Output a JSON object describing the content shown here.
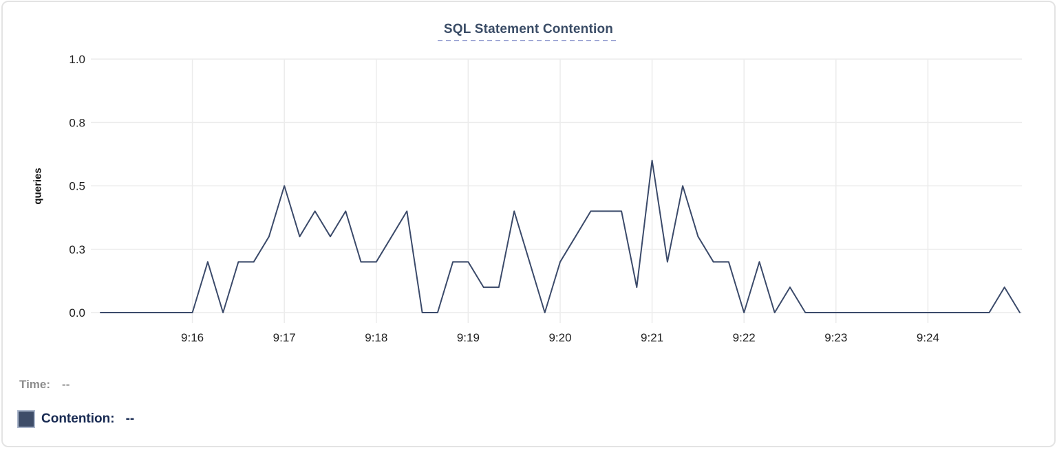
{
  "chart": {
    "title": "SQL Statement Contention",
    "y_axis_title": "queries",
    "colors": {
      "line": "#3b4a6a",
      "grid": "#ececec",
      "tick_text": "#1f1f1f",
      "title_text": "#3a4c66",
      "title_underline": "#a2aad6"
    }
  },
  "legend": {
    "time_label": "Time:",
    "time_value": "--",
    "contention_label": "Contention:",
    "contention_value": "--",
    "swatch_color": "#3e4d69"
  },
  "chart_data": {
    "type": "line",
    "title": "SQL Statement Contention",
    "xlabel": "",
    "ylabel": "queries",
    "ylim": [
      0,
      1
    ],
    "grid": true,
    "legend_position": "bottom-left",
    "y_ticks": [
      {
        "label": "0.0",
        "value": 0
      },
      {
        "label": "0.3",
        "value": 0.25
      },
      {
        "label": "0.5",
        "value": 0.5
      },
      {
        "label": "0.8",
        "value": 0.75
      },
      {
        "label": "1.0",
        "value": 1
      }
    ],
    "x_ticks": [
      {
        "label": "9:16",
        "minute": 1
      },
      {
        "label": "9:17",
        "minute": 2
      },
      {
        "label": "9:18",
        "minute": 3
      },
      {
        "label": "9:19",
        "minute": 4
      },
      {
        "label": "9:20",
        "minute": 5
      },
      {
        "label": "9:21",
        "minute": 6
      },
      {
        "label": "9:22",
        "minute": 7
      },
      {
        "label": "9:23",
        "minute": 8
      },
      {
        "label": "9:24",
        "minute": 9
      }
    ],
    "x_start": "9:15:00",
    "x_end": "9:25:00",
    "interval_seconds": 10,
    "series": [
      {
        "name": "Contention",
        "color": "#3b4a6a",
        "x_times": [
          "9:15:00",
          "9:15:10",
          "9:15:20",
          "9:15:30",
          "9:15:40",
          "9:15:50",
          "9:16:00",
          "9:16:10",
          "9:16:20",
          "9:16:30",
          "9:16:40",
          "9:16:50",
          "9:17:00",
          "9:17:10",
          "9:17:20",
          "9:17:30",
          "9:17:40",
          "9:17:50",
          "9:18:00",
          "9:18:10",
          "9:18:20",
          "9:18:30",
          "9:18:40",
          "9:18:50",
          "9:19:00",
          "9:19:10",
          "9:19:20",
          "9:19:30",
          "9:19:40",
          "9:19:50",
          "9:20:00",
          "9:20:10",
          "9:20:20",
          "9:20:30",
          "9:20:40",
          "9:20:50",
          "9:21:00",
          "9:21:10",
          "9:21:20",
          "9:21:30",
          "9:21:40",
          "9:21:50",
          "9:22:00",
          "9:22:10",
          "9:22:20",
          "9:22:30",
          "9:22:40",
          "9:22:50",
          "9:23:00",
          "9:23:10",
          "9:23:20",
          "9:23:30",
          "9:23:40",
          "9:23:50",
          "9:24:00",
          "9:24:10",
          "9:24:20",
          "9:24:30",
          "9:24:40",
          "9:24:50",
          "9:25:00"
        ],
        "values": [
          0,
          0,
          0,
          0,
          0,
          0,
          0,
          0.2,
          0,
          0.2,
          0.2,
          0.3,
          0.5,
          0.3,
          0.4,
          0.3,
          0.4,
          0.2,
          0.2,
          0.3,
          0.4,
          0,
          0,
          0.2,
          0.2,
          0.1,
          0.1,
          0.4,
          0.2,
          0,
          0.2,
          0.3,
          0.4,
          0.4,
          0.4,
          0.1,
          0.6,
          0.2,
          0.5,
          0.3,
          0.2,
          0.2,
          0,
          0.2,
          0,
          0.1,
          0,
          0,
          0,
          0,
          0,
          0,
          0,
          0,
          0,
          0,
          0,
          0,
          0,
          0.1,
          0
        ]
      }
    ]
  }
}
